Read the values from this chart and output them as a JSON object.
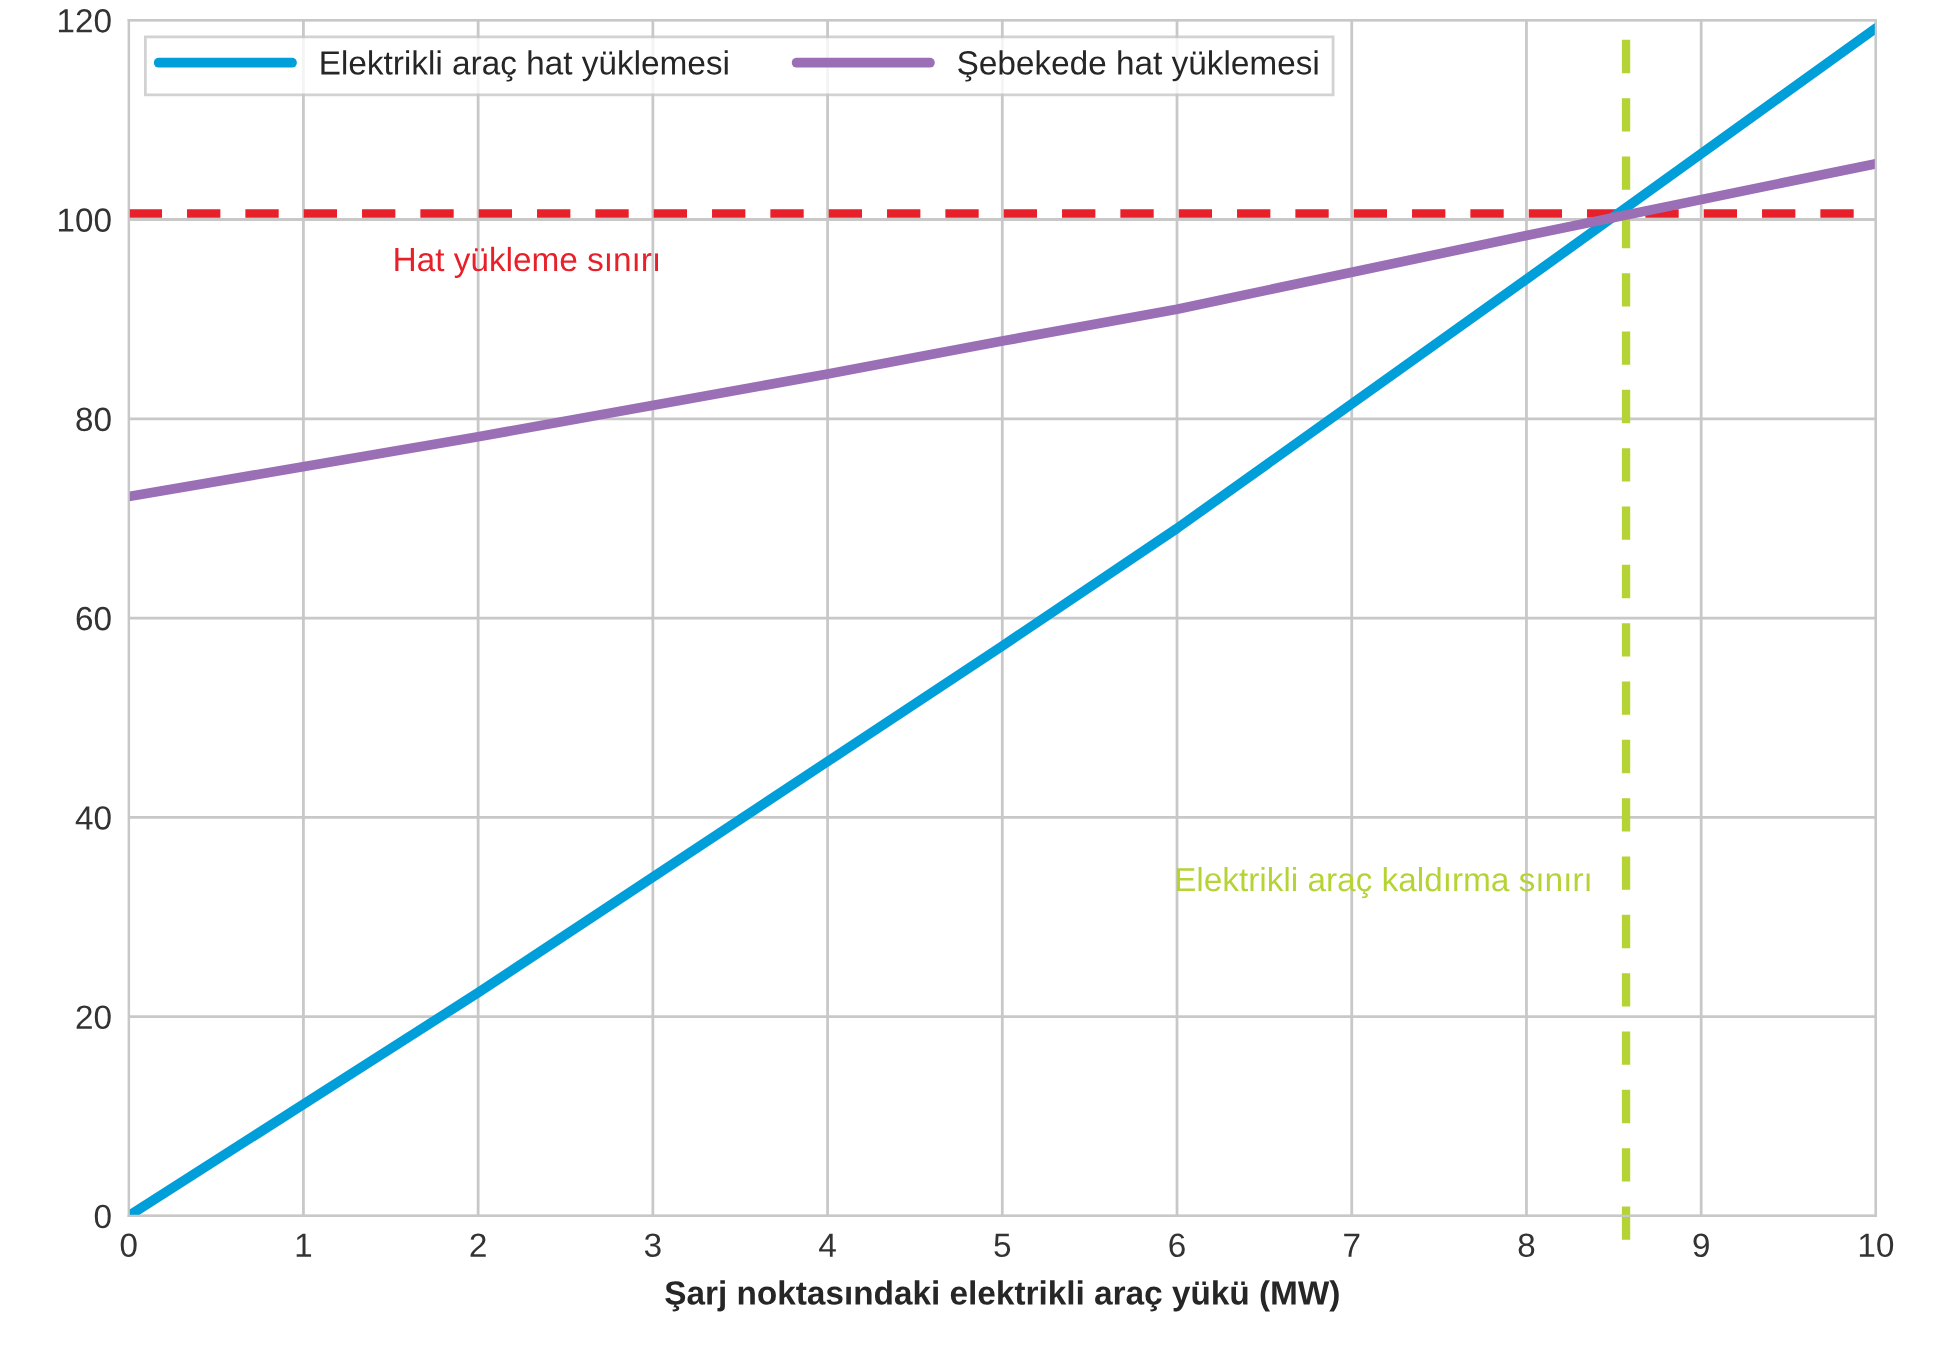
{
  "chart_data": {
    "type": "line",
    "xlabel": "Şarj noktasındaki elektrikli araç yükü (MW)",
    "x": [
      0,
      2,
      4,
      5,
      6,
      8,
      10
    ],
    "series": [
      {
        "name": "Elektrikli araç hat yüklemesi",
        "color": "#009fd9",
        "values": [
          0,
          22.4,
          45.6,
          57.2,
          69.0,
          94.0,
          119.2
        ]
      },
      {
        "name": "Şebekede hat yüklemesi",
        "color": "#9b6fb5",
        "values": [
          72.2,
          78.2,
          84.5,
          87.8,
          91.0,
          98.4,
          105.6
        ]
      }
    ],
    "ref_lines": [
      {
        "axis": "y",
        "value": 100.6,
        "label": "Hat yükleme sınırı",
        "color": "#e8202a",
        "line_style": "dashed"
      },
      {
        "axis": "x",
        "value": 8.57,
        "label": "Elektrikli araç kaldırma sınırı",
        "color": "#b5d334",
        "line_style": "dashed"
      }
    ],
    "xlim": [
      0,
      10
    ],
    "ylim": [
      0,
      120
    ],
    "xticks": [
      0,
      1,
      2,
      3,
      4,
      5,
      6,
      7,
      8,
      9,
      10
    ],
    "yticks": [
      0,
      20,
      40,
      60,
      80,
      100,
      120
    ],
    "grid": true,
    "legend": "top left",
    "marker": "none",
    "line_style": "solid"
  }
}
